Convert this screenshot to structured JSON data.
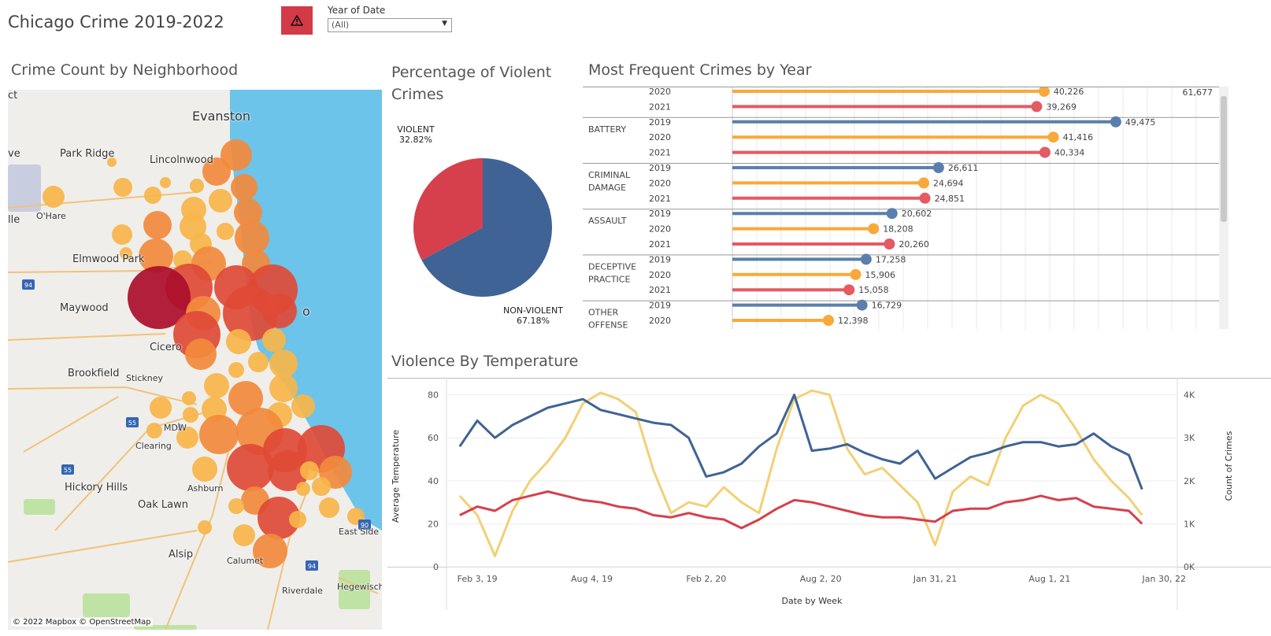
{
  "header": {
    "title": "Chicago Crime 2019-2022",
    "alert_icon": "warning-icon",
    "filter_label": "Year of Date",
    "filter_value": "(All)"
  },
  "map_panel": {
    "title": "Crime Count by Neighborhood",
    "credit": "© 2022 Mapbox © OpenStreetMap",
    "labels": [
      "Evanston",
      "Park Ridge",
      "Lincolnwood",
      "O'Hare",
      "Elmwood Park",
      "Maywood",
      "Cicero",
      "Brookfield",
      "Stickney",
      "MDW",
      "Clearing",
      "Hickory Hills",
      "Ashburn",
      "Oak Lawn",
      "East Side",
      "Alsip",
      "Calumet",
      "Riverdale",
      "Hegewisch",
      "o",
      "ct",
      "ve",
      "lle"
    ],
    "highway_labels": [
      "94",
      "55",
      "55",
      "94",
      "90"
    ],
    "colors": {
      "water": "#6cc4ea",
      "land": "#efeeea",
      "park": "#bfe3a4",
      "low": "#f7b54a",
      "mid": "#f28a3c",
      "high": "#e04a36",
      "max": "#ab0d2b"
    }
  },
  "pie_panel": {
    "title": "Percentage of Violent Crimes",
    "slices": [
      {
        "label": "VIOLENT",
        "percent_text": "32.82%",
        "value": 32.82,
        "color": "#d6404c"
      },
      {
        "label": "NON-VIOLENT",
        "percent_text": "67.18%",
        "value": 67.18,
        "color": "#3f6394"
      }
    ]
  },
  "freq_panel": {
    "title": "Most Frequent Crimes by Year",
    "x_max": 63000,
    "top_value_text": "61,677",
    "year_colors": {
      "2019": "#5a7fad",
      "2020": "#f8a93a",
      "2021": "#e55a63"
    },
    "groups": [
      {
        "category": "",
        "rows": [
          {
            "year": "2020",
            "value": 40226,
            "label": "40,226"
          },
          {
            "year": "2021",
            "value": 39269,
            "label": "39,269"
          }
        ]
      },
      {
        "category": "BATTERY",
        "rows": [
          {
            "year": "2019",
            "value": 49475,
            "label": "49,475"
          },
          {
            "year": "2020",
            "value": 41416,
            "label": "41,416"
          },
          {
            "year": "2021",
            "value": 40334,
            "label": "40,334"
          }
        ]
      },
      {
        "category": "CRIMINAL DAMAGE",
        "rows": [
          {
            "year": "2019",
            "value": 26611,
            "label": "26,611"
          },
          {
            "year": "2020",
            "value": 24694,
            "label": "24,694"
          },
          {
            "year": "2021",
            "value": 24851,
            "label": "24,851"
          }
        ]
      },
      {
        "category": "ASSAULT",
        "rows": [
          {
            "year": "2019",
            "value": 20602,
            "label": "20,602"
          },
          {
            "year": "2020",
            "value": 18208,
            "label": "18,208"
          },
          {
            "year": "2021",
            "value": 20260,
            "label": "20,260"
          }
        ]
      },
      {
        "category": "DECEPTIVE PRACTICE",
        "rows": [
          {
            "year": "2019",
            "value": 17258,
            "label": "17,258"
          },
          {
            "year": "2020",
            "value": 15906,
            "label": "15,906"
          },
          {
            "year": "2021",
            "value": 15058,
            "label": "15,058"
          }
        ]
      },
      {
        "category": "OTHER OFFENSE",
        "rows": [
          {
            "year": "2019",
            "value": 16729,
            "label": "16,729"
          },
          {
            "year": "2020",
            "value": 12398,
            "label": "12,398"
          }
        ]
      }
    ]
  },
  "chart_data": {
    "type": "line",
    "title": "Violence By Temperature",
    "xlabel": "Date by Week",
    "ylabel": "Average Temperature",
    "ylabel_right": "Count of Crimes",
    "x_ticks": [
      "Feb 3, 19",
      "Aug 4, 19",
      "Feb 2, 20",
      "Aug 2, 20",
      "Jan 31, 21",
      "Aug 1, 21",
      "Jan 30, 22"
    ],
    "y_ticks": [
      "0",
      "20",
      "40",
      "60",
      "80"
    ],
    "y_right_ticks": [
      "0K",
      "1K",
      "2K",
      "3K",
      "4K"
    ],
    "ylim": [
      0,
      85
    ],
    "ylim_right": [
      0,
      4250
    ],
    "xlim": [
      "2018-12-16",
      "2022-02-20"
    ],
    "colors": {
      "temperature": "#f2d074",
      "non_violent": "#3f6394",
      "violent": "#d6404c"
    },
    "x": [
      "2019-01-06",
      "2019-02-03",
      "2019-03-03",
      "2019-03-31",
      "2019-04-28",
      "2019-05-26",
      "2019-06-23",
      "2019-07-21",
      "2019-08-18",
      "2019-09-15",
      "2019-10-13",
      "2019-11-10",
      "2019-12-08",
      "2020-01-05",
      "2020-02-02",
      "2020-03-01",
      "2020-03-29",
      "2020-04-26",
      "2020-05-24",
      "2020-06-21",
      "2020-07-19",
      "2020-08-16",
      "2020-09-13",
      "2020-10-11",
      "2020-11-08",
      "2020-12-06",
      "2021-01-03",
      "2021-01-31",
      "2021-02-28",
      "2021-03-28",
      "2021-04-25",
      "2021-05-23",
      "2021-06-20",
      "2021-07-18",
      "2021-08-15",
      "2021-09-12",
      "2021-10-10",
      "2021-11-07",
      "2021-12-05",
      "2021-12-26"
    ],
    "series": [
      {
        "key": "temperature",
        "axis": "left",
        "values": [
          33,
          24,
          5,
          26,
          40,
          49,
          60,
          76,
          81,
          78,
          72,
          45,
          25,
          30,
          28,
          37,
          30,
          25,
          55,
          78,
          82,
          80,
          55,
          43,
          46,
          38,
          30,
          10,
          35,
          42,
          38,
          60,
          75,
          80,
          76,
          64,
          50,
          40,
          32,
          24
        ]
      },
      {
        "key": "non_violent",
        "axis": "right",
        "values": [
          2800,
          3400,
          3000,
          3300,
          3500,
          3700,
          3800,
          3900,
          3650,
          3550,
          3450,
          3350,
          3300,
          3000,
          2100,
          2200,
          2400,
          2800,
          3100,
          4000,
          2700,
          2750,
          2850,
          2650,
          2500,
          2400,
          2700,
          2050,
          2300,
          2550,
          2650,
          2800,
          2900,
          2900,
          2800,
          2850,
          3100,
          2800,
          2600,
          1800
        ]
      },
      {
        "key": "violent",
        "axis": "right",
        "values": [
          1200,
          1400,
          1300,
          1550,
          1650,
          1750,
          1650,
          1550,
          1500,
          1400,
          1350,
          1200,
          1150,
          1250,
          1150,
          1100,
          900,
          1100,
          1350,
          1550,
          1500,
          1400,
          1300,
          1200,
          1150,
          1150,
          1100,
          1050,
          1300,
          1350,
          1350,
          1500,
          1550,
          1650,
          1550,
          1600,
          1400,
          1350,
          1300,
          1000
        ]
      }
    ]
  }
}
